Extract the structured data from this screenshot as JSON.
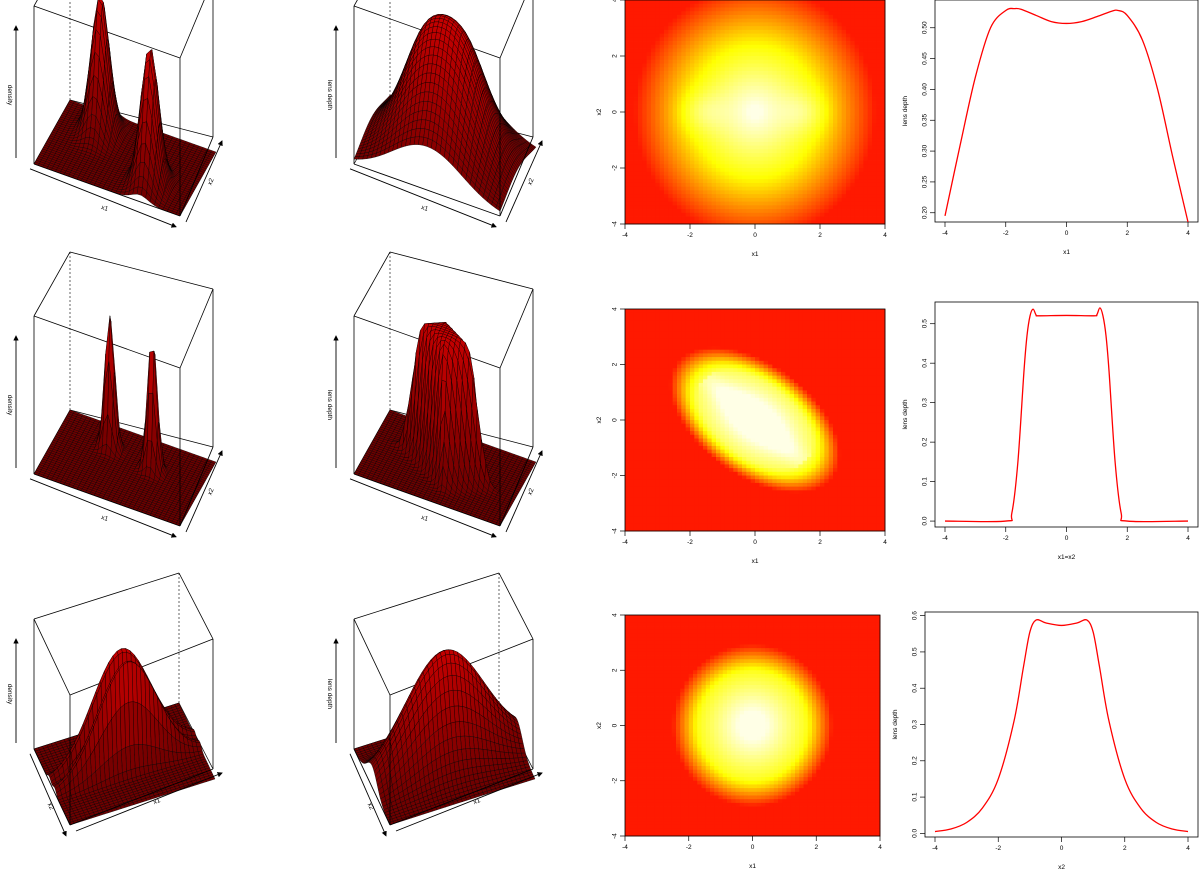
{
  "chart_data": [
    {
      "type": "surface",
      "panel": "density-row1",
      "zlabel": "density",
      "xlabel": "x1",
      "ylabel": "x2",
      "shape": "two separated peaks along x1"
    },
    {
      "type": "surface",
      "panel": "lens-depth-row1",
      "zlabel": "lens depth",
      "xlabel": "x1",
      "ylabel": "x2",
      "shape": "broad ridge with two shallow humps"
    },
    {
      "type": "heatmap",
      "panel": "lens-depth-map-row1",
      "xlabel": "x1",
      "ylabel": "x2",
      "xlim": [
        -4,
        4
      ],
      "ylim": [
        -4,
        4
      ],
      "xticks": [
        -4,
        -2,
        0,
        2,
        4
      ],
      "yticks": [
        -4,
        -2,
        0,
        2,
        4
      ],
      "colormap": "heat (red low, white high)",
      "high_region": "elliptical, centred at origin, bright spots near x1=-1.5 and x1=1.5"
    },
    {
      "type": "line",
      "panel": "lens-depth-profile-row1",
      "xlabel": "x1",
      "ylabel": "lens depth",
      "xlim": [
        -4,
        4
      ],
      "ylim": [
        0.185,
        0.545
      ],
      "xticks": [
        -4,
        -2,
        0,
        2,
        4
      ],
      "yticks": [
        0.2,
        0.25,
        0.3,
        0.35,
        0.4,
        0.45,
        0.5
      ],
      "x": [
        -4,
        -3.5,
        -3,
        -2.5,
        -2,
        -1.7,
        -1.5,
        -1,
        -0.5,
        0,
        0.5,
        1,
        1.5,
        1.7,
        2,
        2.5,
        3,
        3.5,
        4
      ],
      "y": [
        0.195,
        0.31,
        0.42,
        0.5,
        0.528,
        0.531,
        0.53,
        0.52,
        0.51,
        0.507,
        0.51,
        0.518,
        0.527,
        0.528,
        0.52,
        0.48,
        0.4,
        0.29,
        0.185
      ],
      "color": "#ff0000"
    },
    {
      "type": "surface",
      "panel": "density-row2",
      "zlabel": "density",
      "xlabel": "x1",
      "ylabel": "x2",
      "shape": "two narrow sharp peaks"
    },
    {
      "type": "surface",
      "panel": "lens-depth-row2",
      "zlabel": "lens depth",
      "xlabel": "x1",
      "ylabel": "x2",
      "shape": "flat-topped plateau with steep walls"
    },
    {
      "type": "heatmap",
      "panel": "lens-depth-map-row2",
      "xlabel": "x1",
      "ylabel": "x2",
      "xlim": [
        -4,
        4
      ],
      "ylim": [
        -4,
        4
      ],
      "xticks": [
        -4,
        -2,
        0,
        2,
        4
      ],
      "yticks": [
        -4,
        -2,
        0,
        2,
        4
      ],
      "colormap": "heat (red low, white high)",
      "high_region": "tilted ellipse along x1=-x2 direction, bright diagonal band"
    },
    {
      "type": "line",
      "panel": "lens-depth-profile-row2",
      "xlabel": "x1=x2",
      "ylabel": "lens depth",
      "xlim": [
        -4,
        4
      ],
      "ylim": [
        -0.015,
        0.555
      ],
      "xticks": [
        -4,
        -2,
        0,
        2,
        4
      ],
      "yticks": [
        0.0,
        0.1,
        0.2,
        0.3,
        0.4,
        0.5
      ],
      "x": [
        -4,
        -2,
        -1.8,
        -1.6,
        -1.4,
        -1.3,
        -1.2,
        -1.1,
        -1.0,
        -0.9,
        0,
        0.9,
        1.0,
        1.1,
        1.2,
        1.3,
        1.4,
        1.6,
        1.8,
        2,
        4
      ],
      "y": [
        0.0,
        0.0,
        0.02,
        0.15,
        0.38,
        0.47,
        0.52,
        0.537,
        0.522,
        0.52,
        0.521,
        0.52,
        0.523,
        0.54,
        0.52,
        0.47,
        0.38,
        0.15,
        0.02,
        0.0,
        0.0
      ],
      "color": "#ff0000"
    },
    {
      "type": "surface",
      "panel": "density-row3",
      "zlabel": "density",
      "xlabel": "x2",
      "ylabel": "x1",
      "shape": "two close parallel ridges"
    },
    {
      "type": "surface",
      "panel": "lens-depth-row3",
      "zlabel": "lens depth",
      "xlabel": "x2",
      "ylabel": "x1",
      "shape": "single tall ridge with slightly notched top"
    },
    {
      "type": "heatmap",
      "panel": "lens-depth-map-row3",
      "xlabel": "x1",
      "ylabel": "x2",
      "xlim": [
        -4,
        4
      ],
      "ylim": [
        -4,
        4
      ],
      "xticks": [
        -4,
        -2,
        0,
        2,
        4
      ],
      "yticks": [
        -4,
        -2,
        0,
        2,
        4
      ],
      "colormap": "heat (red low, white high)",
      "high_region": "compact disc at origin, elongated along x2"
    },
    {
      "type": "line",
      "panel": "lens-depth-profile-row3",
      "xlabel": "x2",
      "ylabel": "lens depth",
      "xlim": [
        -4,
        4
      ],
      "ylim": [
        -0.01,
        0.61
      ],
      "xticks": [
        -4,
        -2,
        0,
        2,
        4
      ],
      "yticks": [
        0.0,
        0.1,
        0.2,
        0.3,
        0.4,
        0.5,
        0.6
      ],
      "x": [
        -4,
        -3.5,
        -3,
        -2.5,
        -2,
        -1.5,
        -1.2,
        -1,
        -0.8,
        -0.5,
        0,
        0.5,
        0.8,
        1,
        1.2,
        1.5,
        2,
        2.5,
        3,
        3.5,
        4
      ],
      "y": [
        0.005,
        0.012,
        0.03,
        0.07,
        0.15,
        0.31,
        0.46,
        0.555,
        0.588,
        0.58,
        0.573,
        0.58,
        0.588,
        0.555,
        0.46,
        0.31,
        0.15,
        0.07,
        0.03,
        0.012,
        0.005
      ],
      "color": "#ff0000"
    }
  ],
  "tick_labels": {
    "four_step": [
      "-4",
      "-2",
      "0",
      "2",
      "4"
    ],
    "row1_profile_y": [
      "0.20",
      "0.25",
      "0.30",
      "0.35",
      "0.40",
      "0.45",
      "0.50"
    ],
    "row2_profile_y": [
      "0.0",
      "0.1",
      "0.2",
      "0.3",
      "0.4",
      "0.5"
    ],
    "row3_profile_y": [
      "0.0",
      "0.1",
      "0.2",
      "0.3",
      "0.4",
      "0.5",
      "0.6"
    ]
  },
  "colors": {
    "curve": "#ff0000",
    "heat_low": "#ff1a00",
    "heat_mid": "#ffff00",
    "heat_high": "#ffffe6",
    "surface": "#8b0000",
    "mesh": "#000000"
  }
}
